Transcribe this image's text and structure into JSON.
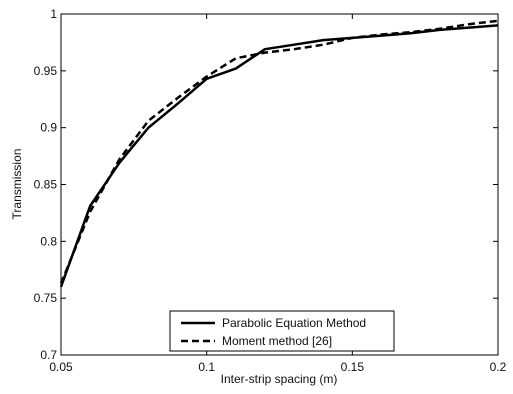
{
  "chart_data": {
    "type": "line",
    "xlabel": "Inter-strip spacing (m)",
    "ylabel": "Transmission",
    "xlim": [
      0.05,
      0.2
    ],
    "ylim": [
      0.7,
      1.0
    ],
    "xticks": [
      0.05,
      0.1,
      0.15,
      0.2
    ],
    "xtick_labels": [
      "0.05",
      "0.1",
      "0.15",
      "0.2"
    ],
    "yticks": [
      0.7,
      0.75,
      0.8,
      0.85,
      0.9,
      0.95,
      1.0
    ],
    "ytick_labels": [
      "0.7",
      "0.75",
      "0.8",
      "0.85",
      "0.9",
      "0.95",
      "1"
    ],
    "grid": false,
    "legend_position": "bottom-center",
    "series": [
      {
        "name": "Parabolic Equation Method",
        "style": "solid",
        "color": "#000000",
        "x": [
          0.05,
          0.06,
          0.07,
          0.08,
          0.09,
          0.1,
          0.11,
          0.12,
          0.13,
          0.14,
          0.15,
          0.16,
          0.17,
          0.18,
          0.19,
          0.2
        ],
        "y": [
          0.76,
          0.831,
          0.869,
          0.9,
          0.921,
          0.943,
          0.952,
          0.969,
          0.973,
          0.977,
          0.979,
          0.981,
          0.983,
          0.986,
          0.988,
          0.99
        ]
      },
      {
        "name": "Moment method [26]",
        "style": "dashed",
        "color": "#000000",
        "x": [
          0.05,
          0.06,
          0.07,
          0.08,
          0.09,
          0.1,
          0.11,
          0.12,
          0.13,
          0.14,
          0.15,
          0.16,
          0.17,
          0.18,
          0.19,
          0.2
        ],
        "y": [
          0.763,
          0.826,
          0.872,
          0.906,
          0.926,
          0.945,
          0.961,
          0.966,
          0.969,
          0.973,
          0.979,
          0.982,
          0.984,
          0.987,
          0.991,
          0.994
        ]
      }
    ]
  }
}
